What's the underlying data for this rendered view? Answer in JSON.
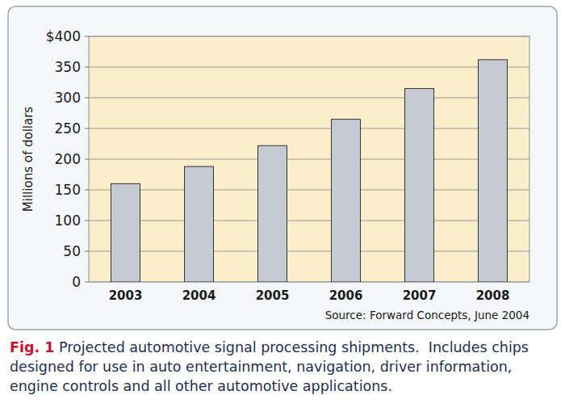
{
  "chart_data": {
    "type": "bar",
    "categories": [
      "2003",
      "2004",
      "2005",
      "2006",
      "2007",
      "2008"
    ],
    "values": [
      160,
      188,
      222,
      265,
      315,
      362
    ],
    "color": "#c5cad3",
    "ylim": [
      0,
      400
    ],
    "yticks": [
      0,
      50,
      100,
      150,
      200,
      250,
      300,
      350,
      {
        "value": 400,
        "label": "$400"
      }
    ],
    "grid": true,
    "y_label": "Millions of dollars",
    "source": "Source: Forward Concepts, June 2004",
    "figure_label": "Fig. 1",
    "caption": "Projected automotive signal processing shipments.  Includes chips designed for use in auto entertainment, navigation, driver information, engine controls and all other automotive applications."
  }
}
